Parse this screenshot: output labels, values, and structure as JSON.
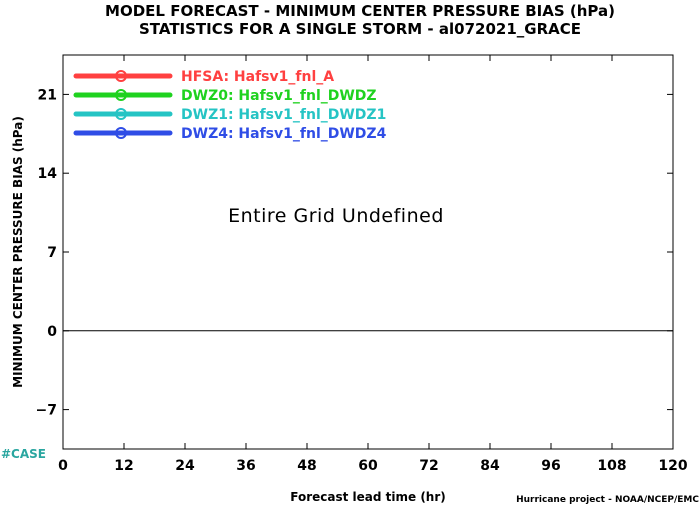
{
  "chart_data": {
    "type": "line",
    "title": "MODEL FORECAST - MINIMUM CENTER PRESSURE BIAS (hPa)",
    "subtitle": "STATISTICS FOR A SINGLE STORM - al072021_GRACE",
    "xlabel": "Forecast lead time (hr)",
    "ylabel": "MINIMUM CENTER PRESSURE BIAS (hPa)",
    "xlim": [
      0,
      120
    ],
    "ylim": [
      -10.5,
      24.5
    ],
    "xticks": [
      0,
      12,
      24,
      36,
      48,
      60,
      72,
      84,
      96,
      108,
      120
    ],
    "yticks": [
      -7,
      0,
      7,
      14,
      21
    ],
    "zero_line": true,
    "grid": false,
    "legend_position": "top-left",
    "annotation": "Entire Grid Undefined",
    "series": [
      {
        "name": "HFSA: Hafsv1_fnl_A",
        "color": "#ff4040",
        "values": []
      },
      {
        "name": "DWZ0: Hafsv1_fnl_DWDZ",
        "color": "#1fd21f",
        "values": []
      },
      {
        "name": "DWZ1: Hafsv1_fnl_DWDZ1",
        "color": "#25c4c4",
        "values": []
      },
      {
        "name": "DWZ4: Hafsv1_fnl_DWDZ4",
        "color": "#2f4de6",
        "values": []
      }
    ]
  },
  "footer": {
    "case_label": "#CASE",
    "credit": "Hurricane project - NOAA/NCEP/EMC"
  }
}
